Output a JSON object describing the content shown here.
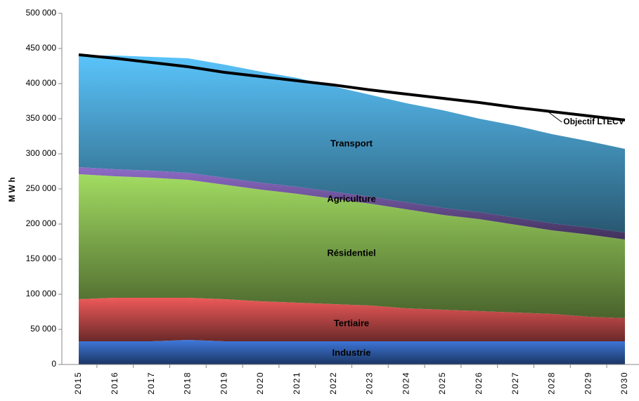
{
  "chart_data": {
    "type": "stacked_area_line",
    "y_label": "M W h",
    "categories": [
      "2015",
      "2016",
      "2017",
      "2018",
      "2019",
      "2020",
      "2021",
      "2022",
      "2023",
      "2024",
      "2025",
      "2026",
      "2027",
      "2028",
      "2029",
      "2030"
    ],
    "series": [
      {
        "name": "Industrie",
        "color": "#3f78dc",
        "values": [
          33000,
          33000,
          33000,
          35000,
          33000,
          33000,
          33000,
          33000,
          33000,
          33000,
          33000,
          33000,
          33000,
          33000,
          33000,
          33000
        ]
      },
      {
        "name": "Tertiaire",
        "color": "#ee5a5a",
        "values": [
          60000,
          62000,
          62000,
          60000,
          60000,
          57000,
          55000,
          53000,
          51000,
          47000,
          45000,
          43000,
          41000,
          39000,
          35000,
          33000
        ]
      },
      {
        "name": "Résidentiel",
        "color": "#a2dc62",
        "values": [
          178000,
          173000,
          171000,
          168000,
          163000,
          159000,
          155000,
          150000,
          145000,
          141000,
          135000,
          131000,
          125000,
          119000,
          117000,
          112000
        ]
      },
      {
        "name": "Agriculture",
        "color": "#8e6cc8",
        "values": [
          10000,
          10000,
          10000,
          10000,
          10000,
          10000,
          10000,
          10000,
          10000,
          10000,
          10000,
          10000,
          10000,
          10000,
          10000,
          10000
        ]
      },
      {
        "name": "Transport",
        "color": "#5ac4fb",
        "values": [
          159000,
          162000,
          162000,
          163000,
          161000,
          158000,
          155000,
          150000,
          145000,
          141000,
          139000,
          133000,
          131000,
          127000,
          123000,
          119000
        ]
      }
    ],
    "line": {
      "name": "Objectif LTECV",
      "color": "#000000",
      "values": [
        441000,
        436000,
        430000,
        424000,
        416000,
        410000,
        404000,
        398000,
        391000,
        385000,
        379000,
        373000,
        366000,
        360000,
        354000,
        348000
      ]
    },
    "ylim": [
      0,
      500000
    ],
    "yticks": [
      0,
      {
        "value": 50000,
        "label": "50 000"
      },
      {
        "value": 100000,
        "label": "100 000"
      },
      {
        "value": 150000,
        "label": "150 000"
      },
      {
        "value": 200000,
        "label": "200 000"
      },
      {
        "value": 250000,
        "label": "250 000"
      },
      {
        "value": 300000,
        "label": "300 000"
      },
      {
        "value": 350000,
        "label": "350 000"
      },
      {
        "value": 400000,
        "label": "400 000"
      },
      {
        "value": 450000,
        "label": "450 000"
      },
      {
        "value": 500000,
        "label": "500 000"
      }
    ],
    "grid": false
  }
}
